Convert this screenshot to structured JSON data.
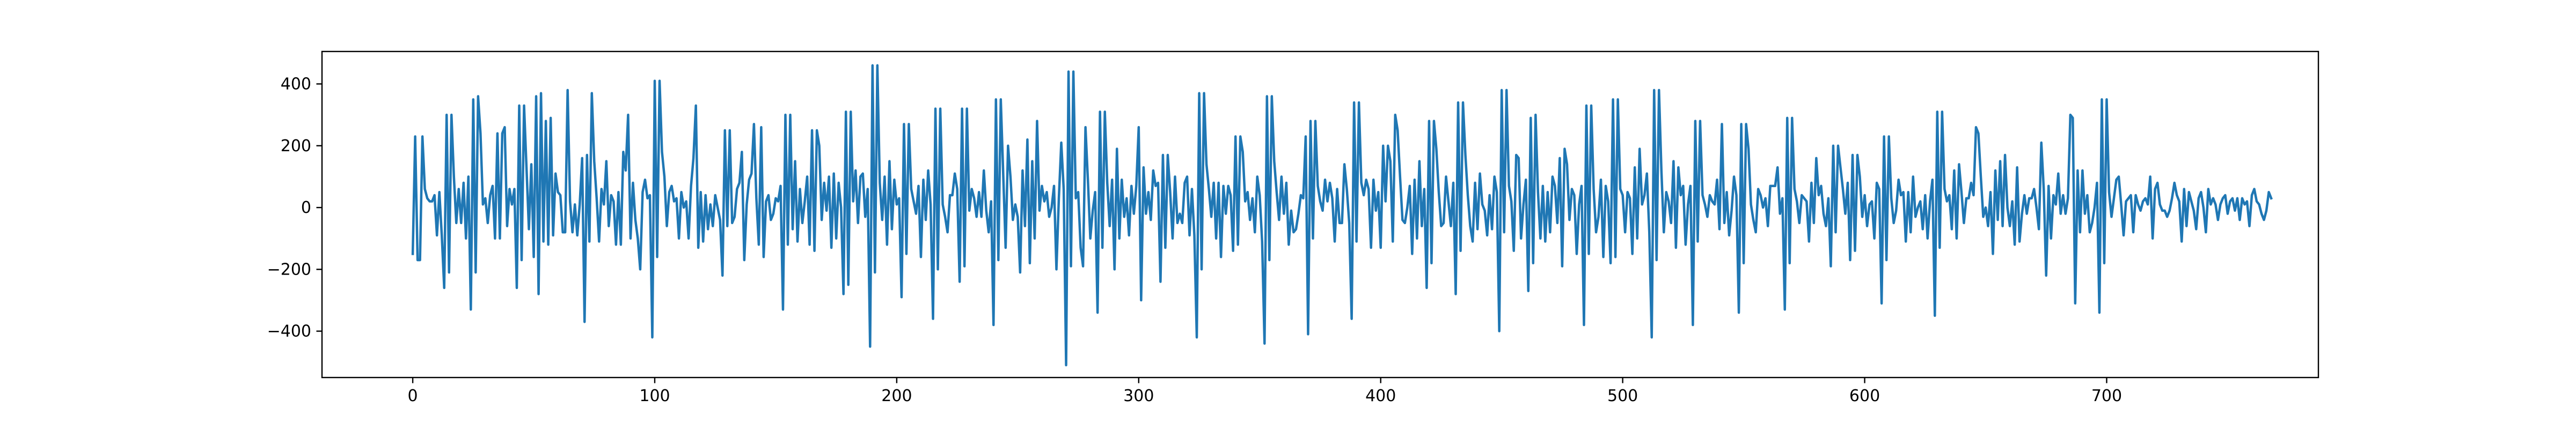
{
  "chart_data": {
    "type": "line",
    "title": "",
    "xlabel": "",
    "ylabel": "",
    "xlim": [
      -37.5,
      787.5
    ],
    "ylim": [
      -550,
      505
    ],
    "xticks": [
      0,
      100,
      200,
      300,
      400,
      500,
      600,
      700
    ],
    "yticks": [
      -400,
      -200,
      0,
      200,
      400
    ],
    "grid": false,
    "legend": "none",
    "series": [
      {
        "color": "#1f77b4",
        "x_start": 0,
        "x_step": 1,
        "y": [
          -150,
          230,
          -170,
          -170,
          230,
          60,
          30,
          20,
          20,
          40,
          -90,
          50,
          -90,
          -260,
          300,
          -210,
          300,
          100,
          -50,
          60,
          -50,
          80,
          -100,
          100,
          -330,
          350,
          -210,
          360,
          240,
          10,
          30,
          -50,
          40,
          70,
          -100,
          240,
          -100,
          240,
          260,
          -60,
          60,
          10,
          60,
          -260,
          330,
          -170,
          330,
          130,
          -70,
          140,
          -160,
          360,
          -280,
          370,
          -110,
          280,
          -120,
          290,
          -90,
          110,
          50,
          40,
          -80,
          -80,
          380,
          20,
          -80,
          10,
          -90,
          10,
          160,
          -370,
          170,
          -110,
          370,
          150,
          30,
          -110,
          60,
          10,
          150,
          -60,
          40,
          20,
          -120,
          50,
          -120,
          180,
          120,
          300,
          -100,
          80,
          -40,
          -100,
          -200,
          50,
          90,
          30,
          40,
          -420,
          410,
          -160,
          410,
          180,
          100,
          -60,
          50,
          70,
          20,
          30,
          -100,
          50,
          0,
          20,
          -100,
          70,
          160,
          330,
          -130,
          50,
          -110,
          40,
          -70,
          10,
          -60,
          40,
          0,
          -40,
          -220,
          250,
          -60,
          250,
          -50,
          -30,
          60,
          80,
          180,
          -170,
          10,
          90,
          110,
          270,
          30,
          -120,
          260,
          -160,
          20,
          40,
          -40,
          -20,
          30,
          20,
          70,
          -330,
          300,
          -120,
          300,
          -70,
          150,
          -110,
          60,
          -50,
          20,
          100,
          -120,
          250,
          -140,
          250,
          200,
          -40,
          80,
          -10,
          100,
          -130,
          110,
          -100,
          80,
          0,
          -280,
          310,
          -250,
          310,
          20,
          120,
          -50,
          100,
          110,
          -30,
          60,
          -450,
          460,
          -210,
          460,
          80,
          -40,
          100,
          -120,
          150,
          -70,
          90,
          10,
          30,
          -290,
          270,
          -150,
          270,
          60,
          20,
          -20,
          70,
          -160,
          90,
          -40,
          120,
          10,
          -360,
          320,
          -200,
          320,
          10,
          -30,
          -80,
          40,
          40,
          110,
          60,
          -240,
          320,
          -190,
          320,
          -10,
          60,
          30,
          -30,
          50,
          -30,
          120,
          -10,
          -80,
          20,
          -380,
          350,
          -170,
          350,
          110,
          -130,
          200,
          100,
          -40,
          10,
          -30,
          -210,
          120,
          -60,
          220,
          -180,
          150,
          -100,
          280,
          -10,
          70,
          20,
          50,
          -30,
          0,
          70,
          -200,
          30,
          210,
          60,
          -510,
          440,
          -190,
          440,
          30,
          50,
          -130,
          -190,
          260,
          90,
          -100,
          -10,
          50,
          -340,
          310,
          -130,
          310,
          80,
          -60,
          90,
          -200,
          190,
          -100,
          90,
          -30,
          30,
          -90,
          70,
          -20,
          70,
          260,
          -300,
          130,
          -20,
          50,
          -40,
          120,
          70,
          80,
          -240,
          170,
          -130,
          170,
          50,
          -100,
          100,
          -50,
          -20,
          -50,
          80,
          100,
          -90,
          60,
          -90,
          -420,
          370,
          -200,
          370,
          140,
          60,
          -30,
          80,
          -100,
          80,
          -160,
          70,
          -20,
          70,
          40,
          -140,
          230,
          -120,
          230,
          180,
          20,
          50,
          -40,
          30,
          -80,
          100,
          40,
          -110,
          -440,
          360,
          -170,
          360,
          150,
          50,
          -40,
          100,
          -20,
          80,
          -120,
          -10,
          -80,
          -70,
          -20,
          40,
          30,
          230,
          -410,
          280,
          -100,
          280,
          70,
          20,
          -10,
          90,
          20,
          80,
          30,
          -110,
          60,
          -50,
          -50,
          140,
          60,
          -50,
          -360,
          340,
          -110,
          340,
          80,
          40,
          90,
          60,
          -130,
          90,
          -10,
          50,
          -130,
          200,
          20,
          200,
          150,
          -110,
          300,
          250,
          100,
          -40,
          -50,
          0,
          70,
          -150,
          90,
          -100,
          150,
          -60,
          60,
          -260,
          280,
          -180,
          280,
          190,
          50,
          -60,
          -50,
          100,
          20,
          -60,
          80,
          -280,
          340,
          -140,
          340,
          170,
          40,
          -60,
          -110,
          80,
          -70,
          110,
          10,
          -10,
          -90,
          40,
          -70,
          100,
          50,
          -400,
          380,
          -80,
          380,
          70,
          20,
          -140,
          170,
          160,
          -100,
          10,
          90,
          -270,
          290,
          -180,
          300,
          50,
          -100,
          70,
          -110,
          50,
          -80,
          100,
          70,
          -50,
          160,
          -190,
          190,
          140,
          -40,
          60,
          40,
          -150,
          10,
          70,
          -380,
          330,
          -150,
          330,
          60,
          -80,
          -30,
          90,
          -160,
          70,
          20,
          -180,
          350,
          -160,
          350,
          60,
          40,
          -80,
          50,
          30,
          -150,
          130,
          -100,
          190,
          10,
          40,
          110,
          -80,
          -420,
          380,
          -170,
          380,
          120,
          -80,
          50,
          20,
          -50,
          150,
          -130,
          130,
          40,
          70,
          -120,
          10,
          70,
          -380,
          280,
          -110,
          280,
          40,
          10,
          -30,
          40,
          20,
          10,
          90,
          -70,
          270,
          -50,
          50,
          -90,
          -10,
          100,
          40,
          -340,
          270,
          -180,
          270,
          190,
          10,
          -40,
          -80,
          60,
          40,
          0,
          30,
          -60,
          70,
          70,
          70,
          130,
          -20,
          30,
          -330,
          290,
          -180,
          290,
          60,
          20,
          -50,
          40,
          30,
          20,
          -110,
          80,
          -50,
          160,
          40,
          70,
          -20,
          -60,
          30,
          -190,
          200,
          -80,
          200,
          130,
          60,
          -20,
          80,
          -170,
          170,
          -140,
          170,
          100,
          -30,
          40,
          -60,
          10,
          20,
          -100,
          80,
          60,
          -310,
          230,
          -170,
          230,
          30,
          -50,
          -10,
          90,
          40,
          50,
          -110,
          50,
          -80,
          100,
          -30,
          0,
          20,
          -70,
          40,
          -100,
          20,
          90,
          -350,
          310,
          -130,
          310,
          60,
          20,
          40,
          -70,
          120,
          -100,
          140,
          50,
          -50,
          30,
          30,
          80,
          40,
          260,
          240,
          100,
          -30,
          0,
          -60,
          50,
          -150,
          120,
          -40,
          150,
          -60,
          170,
          0,
          -60,
          20,
          -120,
          130,
          -110,
          -20,
          40,
          -20,
          30,
          30,
          60,
          0,
          -70,
          210,
          60,
          -220,
          70,
          -100,
          40,
          10,
          110,
          -20,
          40,
          -20,
          30,
          300,
          290,
          -310,
          120,
          -80,
          120,
          -20,
          40,
          -80,
          -50,
          0,
          80,
          -340,
          350,
          -180,
          350,
          50,
          -30,
          30,
          90,
          100,
          10,
          -90,
          20,
          30,
          40,
          -80,
          40,
          10,
          -10,
          20,
          30,
          10,
          100,
          -100,
          60,
          80,
          10,
          -10,
          -10,
          -30,
          -10,
          30,
          80,
          40,
          20,
          -110,
          60,
          -60,
          50,
          20,
          -10,
          -70,
          30,
          50,
          0,
          -80,
          60,
          10,
          30,
          10,
          -40,
          10,
          30,
          40,
          -20,
          20,
          30,
          -10,
          30,
          -40,
          30,
          10,
          20,
          -60,
          40,
          60,
          20,
          10,
          -20,
          -40,
          -10,
          50,
          30
        ]
      }
    ]
  }
}
